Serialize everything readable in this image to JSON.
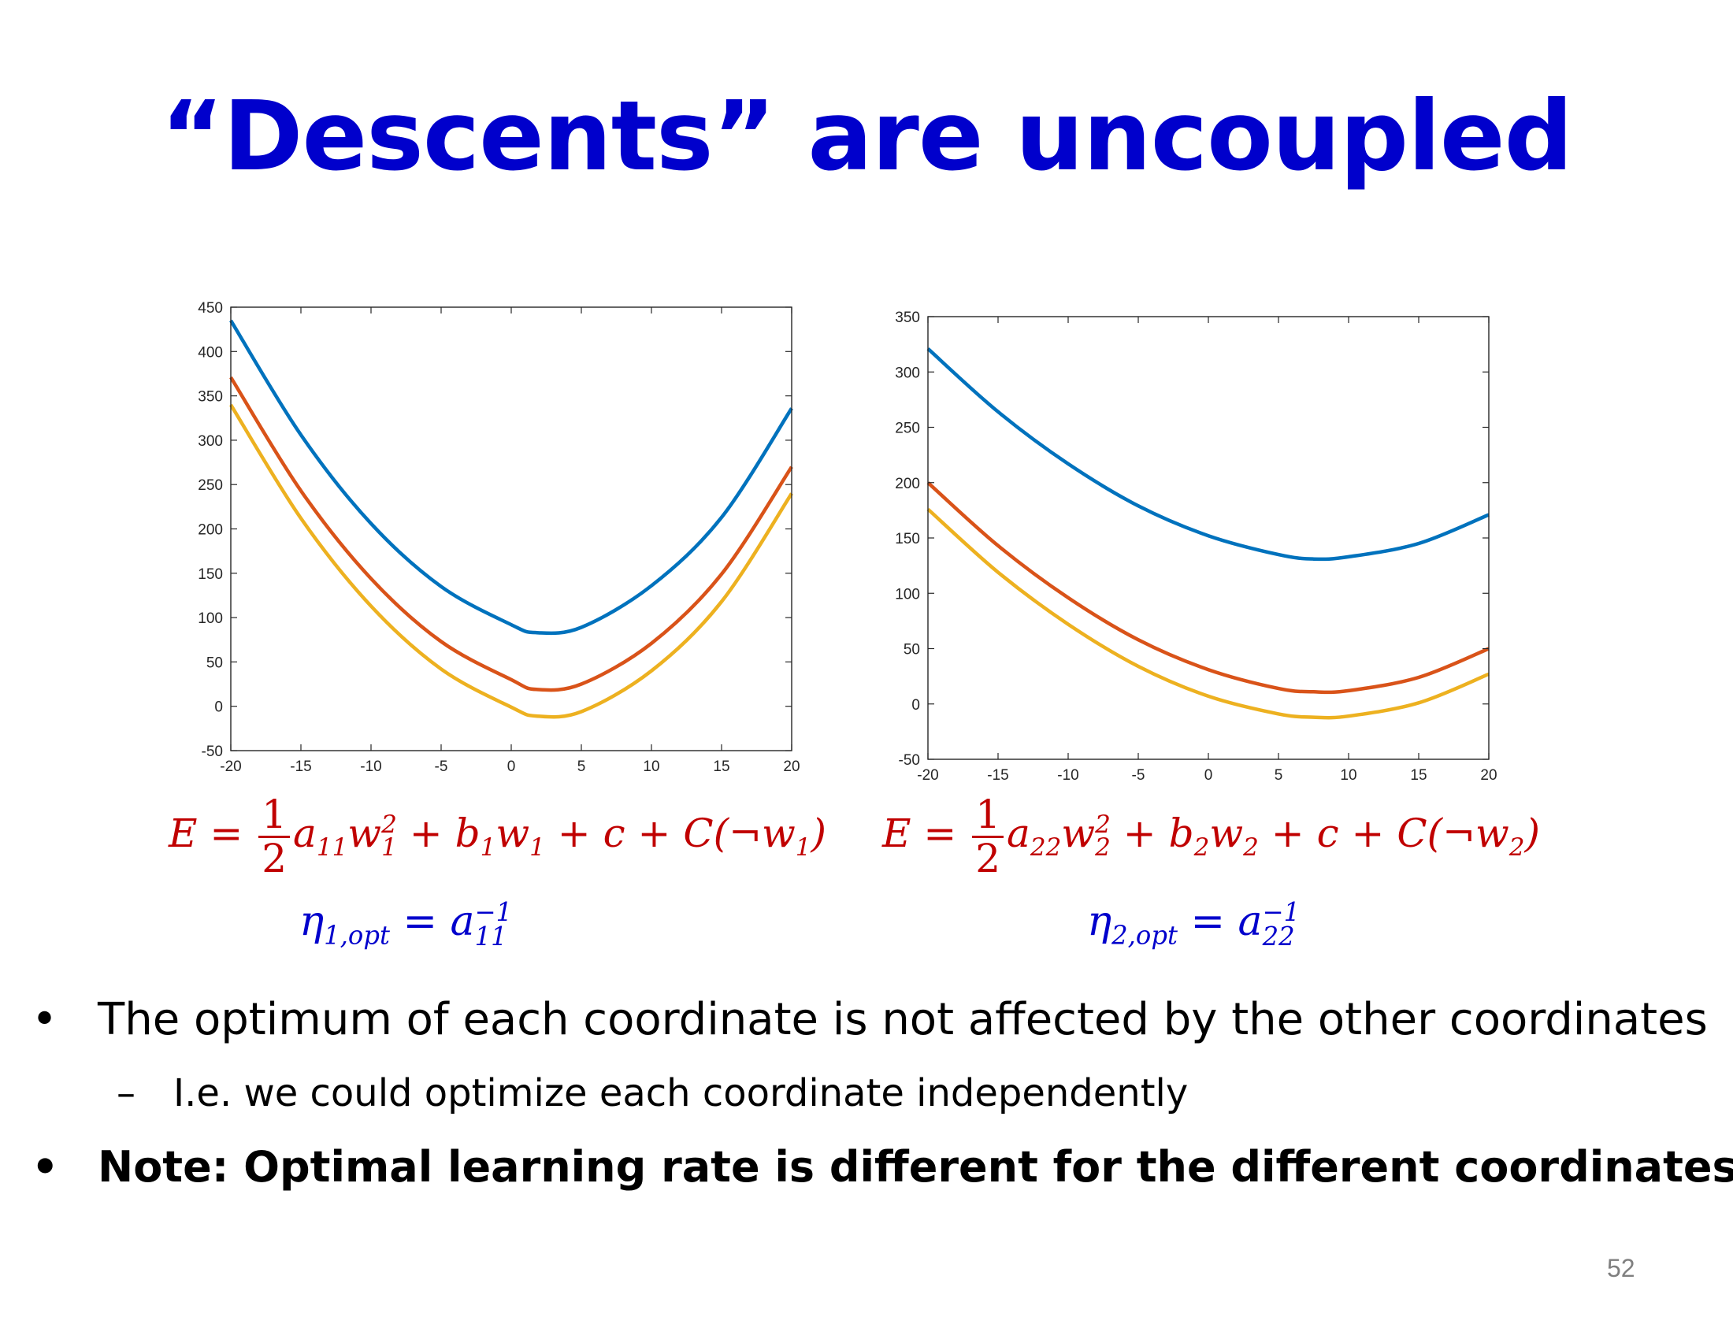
{
  "slide": {
    "title": "“Descents” are uncoupled",
    "page_number": "52"
  },
  "equations": {
    "left": {
      "E": "E",
      "eq": "=",
      "frac_num": "1",
      "frac_den": "2",
      "a": "a",
      "a_sub": "11",
      "w": "w",
      "w_sup": "2",
      "w_sub": "1",
      "plus1": "+",
      "b": "b",
      "b_sub": "1",
      "w2": "w",
      "w2_sub": "1",
      "plus2": "+",
      "c": "c",
      "plus3": "+",
      "C": "C",
      "neg": "(¬w",
      "neg_sub": "1",
      "close": ")"
    },
    "right": {
      "E": "E",
      "eq": "=",
      "frac_num": "1",
      "frac_den": "2",
      "a": "a",
      "a_sub": "22",
      "w": "w",
      "w_sup": "2",
      "w_sub": "2",
      "plus1": "+",
      "b": "b",
      "b_sub": "2",
      "w2": "w",
      "w2_sub": "2",
      "plus2": "+",
      "c": "c",
      "plus3": "+",
      "C": "C",
      "neg": "(¬w",
      "neg_sub": "2",
      "close": ")"
    },
    "left_eta": {
      "eta": "η",
      "eta_sub": "1,opt",
      "eq": "=",
      "a": "a",
      "a_sup": "−1",
      "a_sub": "11"
    },
    "right_eta": {
      "eta": "η",
      "eta_sub": "2,opt",
      "eq": "=",
      "a": "a",
      "a_sup": "−1",
      "a_sub": "22"
    }
  },
  "bullets": [
    {
      "mark": "•",
      "text": "The optimum of each coordinate is not affected by the other coordinates"
    },
    {
      "mark": "–",
      "text": "I.e. we could optimize each coordinate independently"
    },
    {
      "mark": "•",
      "text": "Note: Optimal learning rate is different for the different coordinates"
    }
  ],
  "chart_data": [
    {
      "type": "line",
      "xlim": [
        -20,
        20
      ],
      "ylim": [
        -50,
        450
      ],
      "xticks": [
        "-20",
        "-15",
        "-10",
        "-5",
        "0",
        "5",
        "10",
        "15",
        "20"
      ],
      "yticks": [
        "-50",
        "0",
        "50",
        "100",
        "150",
        "200",
        "250",
        "300",
        "350",
        "400",
        "450"
      ],
      "grid": false,
      "series": [
        {
          "color": "#0072bd",
          "x": [
            -20,
            -15,
            -10,
            -5,
            0,
            1.8,
            5,
            10,
            15,
            20
          ],
          "y": [
            435,
            306,
            206,
            135,
            92,
            83,
            89,
            136,
            213,
            336
          ]
        },
        {
          "color": "#d95319",
          "x": [
            -20,
            -15,
            -10,
            -5,
            0,
            1.8,
            5,
            10,
            15,
            20
          ],
          "y": [
            371,
            243,
            144,
            73,
            30,
            19,
            25,
            71,
            149,
            270
          ]
        },
        {
          "color": "#edb120",
          "x": [
            -20,
            -15,
            -10,
            -5,
            0,
            1.8,
            5,
            10,
            15,
            20
          ],
          "y": [
            340,
            212,
            113,
            42,
            -1,
            -11,
            -6,
            40,
            118,
            240
          ]
        }
      ]
    },
    {
      "type": "line",
      "xlim": [
        -20,
        20
      ],
      "ylim": [
        -50,
        350
      ],
      "xticks": [
        "-20",
        "-15",
        "-10",
        "-5",
        "0",
        "5",
        "10",
        "15",
        "20"
      ],
      "yticks": [
        "-50",
        "0",
        "50",
        "100",
        "150",
        "200",
        "250",
        "300",
        "350"
      ],
      "grid": false,
      "series": [
        {
          "color": "#0072bd",
          "x": [
            -20,
            -15,
            -10,
            -5,
            0,
            5,
            7.5,
            10,
            15,
            20
          ],
          "y": [
            321,
            264,
            217,
            179,
            152,
            135,
            131,
            133,
            145,
            171
          ]
        },
        {
          "color": "#d95319",
          "x": [
            -20,
            -15,
            -10,
            -5,
            0,
            5,
            7.5,
            10,
            15,
            20
          ],
          "y": [
            200,
            143,
            96,
            58,
            31,
            14,
            11,
            12,
            24,
            50
          ]
        },
        {
          "color": "#edb120",
          "x": [
            -20,
            -15,
            -10,
            -5,
            0,
            5,
            7.5,
            10,
            15,
            20
          ],
          "y": [
            176,
            119,
            72,
            34,
            7,
            -9,
            -12,
            -11,
            1,
            27
          ]
        }
      ]
    }
  ]
}
